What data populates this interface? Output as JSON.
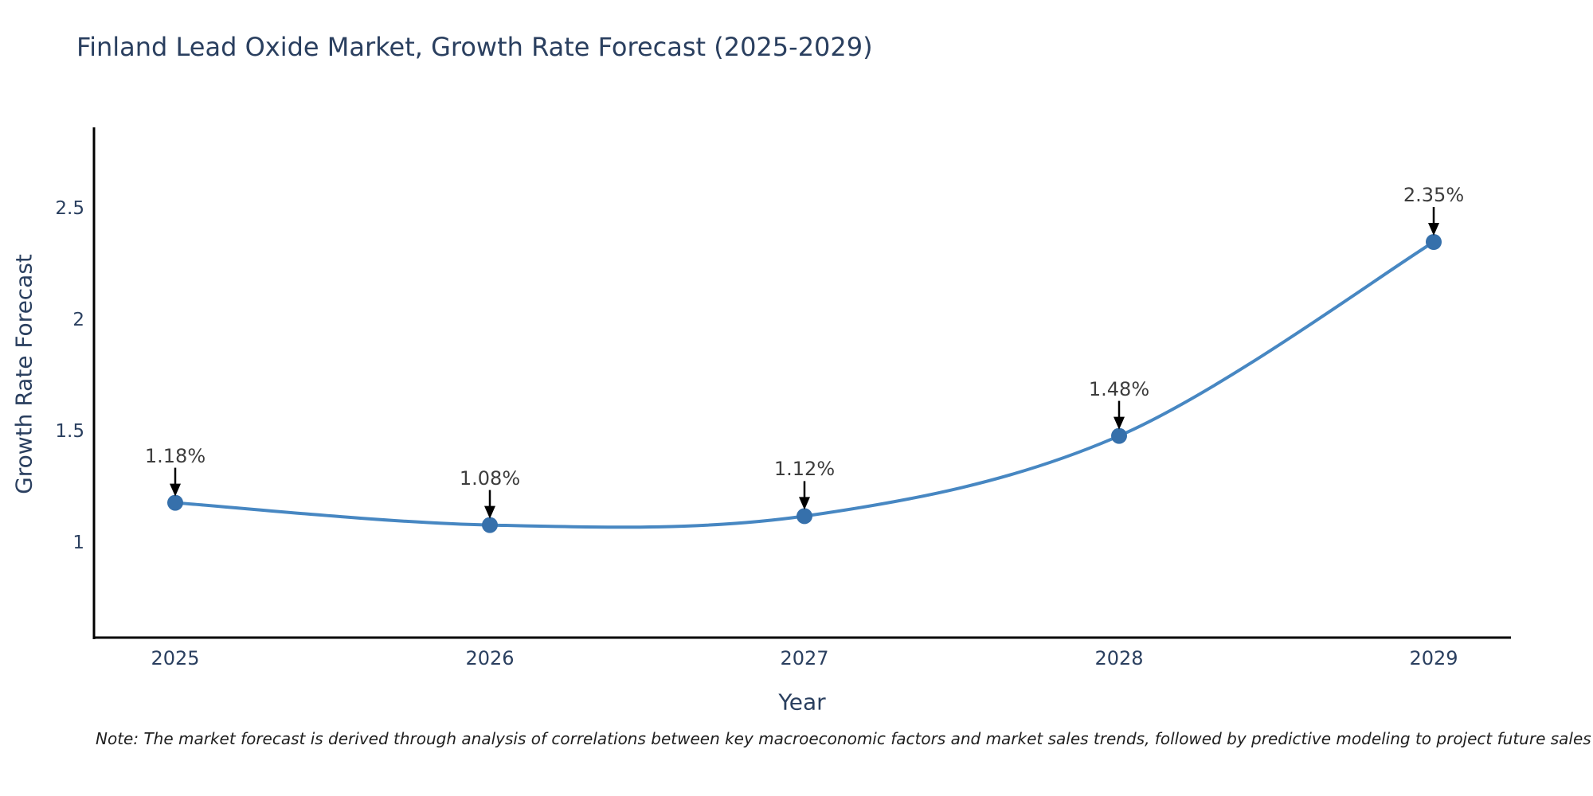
{
  "note": "Note: The market forecast is derived through analysis of correlations between key macroeconomic factors and market sales trends, followed by predictive modeling to project future sales",
  "chart_data": {
    "type": "line",
    "title": "Finland Lead Oxide Market, Growth Rate Forecast (2025-2029)",
    "xlabel": "Year",
    "ylabel": "Growth Rate Forecast",
    "x": [
      2025,
      2026,
      2027,
      2028,
      2029
    ],
    "x_tick_labels": [
      "2025",
      "2026",
      "2027",
      "2028",
      "2029"
    ],
    "values": [
      1.18,
      1.08,
      1.12,
      1.48,
      2.35
    ],
    "point_labels": [
      "1.18%",
      "1.08%",
      "1.12%",
      "1.48%",
      "2.35%"
    ],
    "y_tick_values": [
      1,
      1.5,
      2,
      2.5
    ],
    "y_tick_labels": [
      "1",
      "1.5",
      "2",
      "2.5"
    ],
    "ylim": [
      0.575,
      2.865
    ],
    "xlim": [
      2024.74,
      2029.25
    ],
    "grid": "off",
    "legend": "none",
    "curve": "spline",
    "line_color": "#4787c2",
    "marker_color": "#3670ab",
    "arrow_color": "#000000",
    "axis_color": "#000000",
    "text_color": "#2a3f5f",
    "annotation_text_color": "#3d3d3d",
    "background_color": "#ffffff"
  }
}
